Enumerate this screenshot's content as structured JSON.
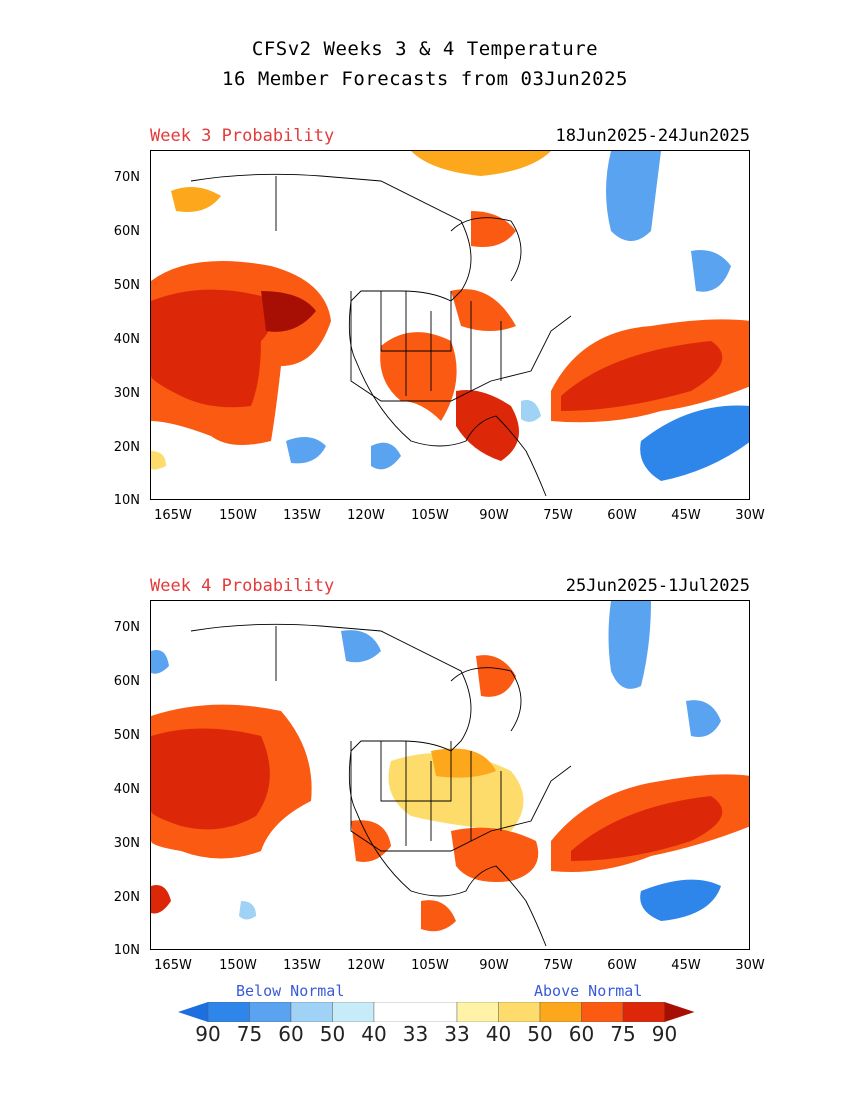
{
  "header": {
    "title_line1": "CFSv2 Weeks 3 & 4 Temperature",
    "title_line2": "16 Member Forecasts from 03Jun2025"
  },
  "panels": [
    {
      "label": "Week 3 Probability",
      "dates": "18Jun2025-24Jun2025"
    },
    {
      "label": "Week 4 Probability",
      "dates": "25Jun2025-1Jul2025"
    }
  ],
  "axes": {
    "lat_ticks": [
      "70N",
      "60N",
      "50N",
      "40N",
      "30N",
      "20N",
      "10N"
    ],
    "lon_ticks": [
      "165W",
      "150W",
      "135W",
      "120W",
      "105W",
      "90W",
      "75W",
      "60W",
      "45W",
      "30W"
    ]
  },
  "legend": {
    "below_label": "Below Normal",
    "above_label": "Above Normal",
    "values": [
      "90",
      "75",
      "60",
      "50",
      "40",
      "33",
      "33",
      "40",
      "50",
      "60",
      "75",
      "90"
    ],
    "colors": [
      "#1d6fe0",
      "#2f86ea",
      "#5aa3f0",
      "#9fd2f5",
      "#c7ecf7",
      "#ffffff",
      "#fff3a8",
      "#fddc6c",
      "#fca71c",
      "#fa5a12",
      "#dc2808",
      "#a80f04"
    ]
  }
}
